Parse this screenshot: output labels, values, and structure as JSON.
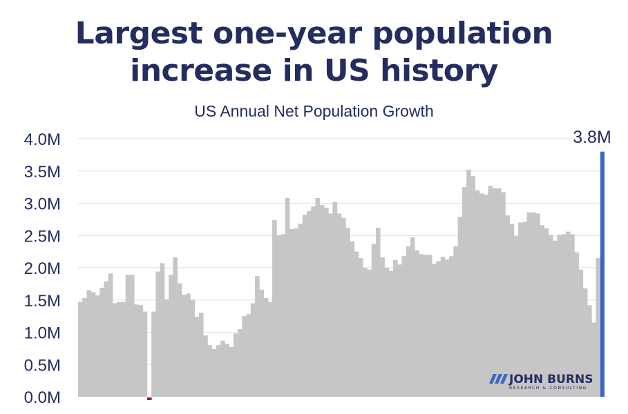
{
  "title": "Largest one-year population increase in US history",
  "subtitle": "US Annual Net Population Growth",
  "callout_label": "3.8M",
  "logo": {
    "name": "JOHN BURNS",
    "tagline": "RESEARCH & CONSULTING"
  },
  "colors": {
    "title": "#232d5f",
    "bar": "#c6c6c6",
    "highlight": "#3a66c4",
    "negative": "#b01818",
    "grid": "#dddddd",
    "logo_accent": "#3a66c4"
  },
  "chart_data": {
    "type": "bar",
    "title": "Largest one-year population increase in US history",
    "subtitle": "US Annual Net Population Growth",
    "xlabel": "",
    "ylabel": "",
    "ylim": [
      0,
      4.0
    ],
    "unit": "M",
    "grid": true,
    "yticks": [
      "0.0M",
      "0.5M",
      "1.0M",
      "1.5M",
      "2.0M",
      "2.5M",
      "3.0M",
      "3.5M",
      "4.0M"
    ],
    "values": [
      1.47,
      1.53,
      1.65,
      1.62,
      1.57,
      1.69,
      1.79,
      1.91,
      1.45,
      1.47,
      1.47,
      1.89,
      1.89,
      1.43,
      1.42,
      1.32,
      -0.05,
      1.32,
      1.94,
      2.07,
      1.51,
      1.89,
      2.16,
      1.76,
      1.58,
      1.6,
      1.5,
      1.24,
      1.3,
      0.95,
      0.8,
      0.74,
      0.8,
      0.87,
      0.82,
      0.77,
      0.98,
      1.05,
      1.25,
      1.28,
      1.45,
      1.87,
      1.66,
      1.53,
      1.47,
      2.74,
      2.5,
      2.52,
      3.08,
      2.6,
      2.61,
      2.68,
      2.82,
      2.88,
      2.95,
      3.08,
      2.97,
      2.93,
      2.84,
      3.02,
      2.84,
      2.77,
      2.62,
      2.41,
      2.25,
      2.15,
      2.0,
      1.97,
      2.37,
      2.62,
      2.16,
      2.0,
      1.95,
      2.12,
      2.05,
      2.18,
      2.33,
      2.47,
      2.27,
      2.21,
      2.2,
      2.2,
      2.06,
      2.1,
      2.17,
      2.13,
      2.18,
      2.33,
      2.79,
      3.25,
      3.52,
      3.42,
      3.2,
      3.15,
      3.13,
      3.27,
      3.23,
      3.23,
      3.17,
      2.81,
      2.68,
      2.49,
      2.7,
      2.71,
      2.86,
      2.86,
      2.84,
      2.66,
      2.61,
      2.51,
      2.42,
      2.51,
      2.52,
      2.56,
      2.52,
      2.24,
      1.97,
      1.68,
      1.42,
      1.15,
      2.15,
      3.8
    ],
    "highlight": {
      "index": 121,
      "value": 3.8,
      "label": "3.8M"
    }
  }
}
